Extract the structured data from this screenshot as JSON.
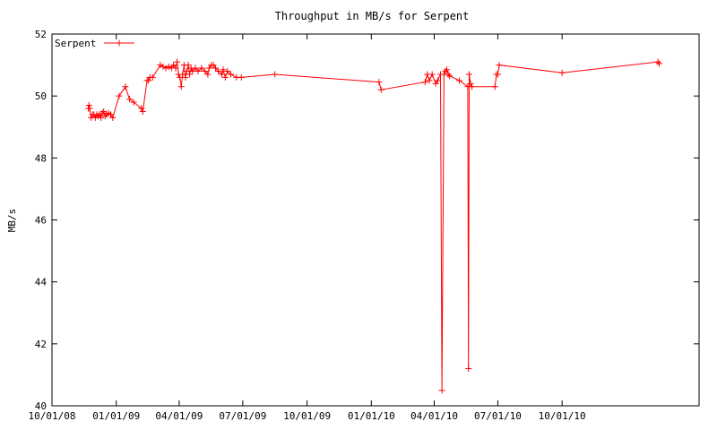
{
  "chart_data": {
    "type": "line",
    "title": "Throughput in MB/s for Serpent",
    "xlabel": "",
    "ylabel": "MB/s",
    "x_axis_type": "date",
    "xlim": [
      "2008-10-01",
      "2011-04-15"
    ],
    "ylim": [
      40,
      52
    ],
    "x_ticks": [
      {
        "date": "2008-10-01",
        "label": "10/01/08"
      },
      {
        "date": "2009-01-01",
        "label": "01/01/09"
      },
      {
        "date": "2009-04-01",
        "label": "04/01/09"
      },
      {
        "date": "2009-07-01",
        "label": "07/01/09"
      },
      {
        "date": "2009-10-01",
        "label": "10/01/09"
      },
      {
        "date": "2010-01-01",
        "label": "01/01/10"
      },
      {
        "date": "2010-04-01",
        "label": "04/01/10"
      },
      {
        "date": "2010-07-01",
        "label": "07/01/10"
      },
      {
        "date": "2010-10-01",
        "label": "10/01/10"
      }
    ],
    "y_ticks": [
      {
        "value": 40,
        "label": "40"
      },
      {
        "value": 42,
        "label": "42"
      },
      {
        "value": 44,
        "label": "44"
      },
      {
        "value": 46,
        "label": "46"
      },
      {
        "value": 48,
        "label": "48"
      },
      {
        "value": 50,
        "label": "50"
      },
      {
        "value": 52,
        "label": "52"
      }
    ],
    "grid": false,
    "legend_position": "top-left",
    "series": [
      {
        "name": "Serpent",
        "color": "#ff0000",
        "marker": "plus",
        "x": [
          "2008-11-22",
          "2008-11-23",
          "2008-11-24",
          "2008-11-26",
          "2008-11-28",
          "2008-11-30",
          "2008-12-02",
          "2008-12-04",
          "2008-12-06",
          "2008-12-08",
          "2008-12-10",
          "2008-12-12",
          "2008-12-14",
          "2008-12-16",
          "2008-12-18",
          "2008-12-21",
          "2008-12-24",
          "2008-12-27",
          "2009-01-05",
          "2009-01-14",
          "2009-01-20",
          "2009-01-26",
          "2009-02-06",
          "2009-02-08",
          "2009-02-14",
          "2009-02-16",
          "2009-02-18",
          "2009-02-22",
          "2009-03-05",
          "2009-03-09",
          "2009-03-13",
          "2009-03-17",
          "2009-03-21",
          "2009-03-24",
          "2009-03-27",
          "2009-03-29",
          "2009-03-31",
          "2009-04-02",
          "2009-04-04",
          "2009-04-06",
          "2009-04-08",
          "2009-04-10",
          "2009-04-12",
          "2009-04-14",
          "2009-04-16",
          "2009-04-18",
          "2009-04-20",
          "2009-04-24",
          "2009-04-28",
          "2009-05-03",
          "2009-05-08",
          "2009-05-12",
          "2009-05-14",
          "2009-05-17",
          "2009-05-20",
          "2009-05-23",
          "2009-05-27",
          "2009-06-01",
          "2009-06-03",
          "2009-06-06",
          "2009-06-09",
          "2009-06-14",
          "2009-06-22",
          "2009-06-29",
          "2009-08-16",
          "2010-01-12",
          "2010-01-15",
          "2010-03-19",
          "2010-03-22",
          "2010-03-25",
          "2010-03-29",
          "2010-04-03",
          "2010-04-06",
          "2010-04-10",
          "2010-04-12",
          "2010-04-15",
          "2010-04-17",
          "2010-04-19",
          "2010-04-21",
          "2010-04-23",
          "2010-05-07",
          "2010-05-19",
          "2010-05-20",
          "2010-05-21",
          "2010-05-23",
          "2010-05-25",
          "2010-06-27",
          "2010-06-29",
          "2010-07-01",
          "2010-07-03",
          "2010-10-01",
          "2011-02-15",
          "2011-02-17"
        ],
        "values": [
          49.6,
          49.7,
          49.6,
          49.3,
          49.4,
          49.4,
          49.3,
          49.4,
          49.35,
          49.4,
          49.3,
          49.45,
          49.5,
          49.35,
          49.4,
          49.45,
          49.4,
          49.3,
          50.0,
          50.3,
          49.9,
          49.8,
          49.6,
          49.5,
          50.5,
          50.5,
          50.6,
          50.6,
          51.0,
          50.95,
          50.9,
          50.95,
          50.9,
          51.0,
          50.9,
          51.1,
          50.7,
          50.6,
          50.3,
          50.7,
          51.0,
          50.6,
          50.8,
          51.0,
          50.7,
          50.9,
          50.8,
          50.9,
          50.8,
          50.9,
          50.8,
          50.7,
          50.9,
          51.0,
          51.0,
          50.9,
          50.8,
          50.7,
          50.85,
          50.6,
          50.8,
          50.7,
          50.6,
          50.6,
          50.7,
          50.45,
          50.2,
          50.45,
          50.7,
          50.5,
          50.7,
          50.4,
          50.5,
          50.7,
          40.5,
          50.7,
          50.8,
          50.85,
          50.7,
          50.65,
          50.5,
          50.3,
          41.2,
          50.7,
          50.4,
          50.3,
          50.3,
          50.7,
          50.7,
          51.0,
          50.75,
          51.1,
          51.05
        ]
      }
    ]
  }
}
